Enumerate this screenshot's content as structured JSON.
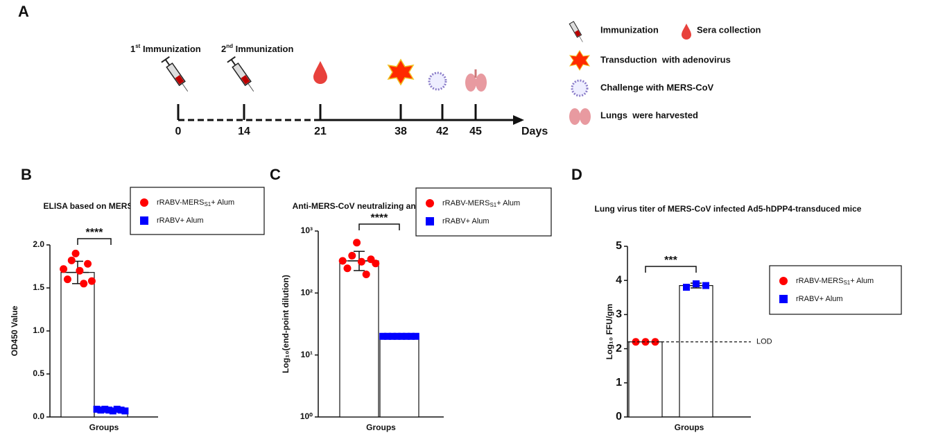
{
  "panel_labels": [
    "A",
    "B",
    "C",
    "D"
  ],
  "timeline": {
    "events": [
      {
        "ordinal": "1",
        "suffix": "st",
        "text": " Immunization"
      },
      {
        "ordinal": "2",
        "suffix": "nd",
        "text": " Immunization"
      }
    ],
    "days": [
      0,
      14,
      21,
      38,
      42,
      45
    ],
    "unit": "Days"
  },
  "legend": [
    "Immunization",
    "Sera collection",
    "Transduction  with adenovirus",
    "Challenge with MERS-CoV",
    "Lungs  were harvested"
  ],
  "chart_data": [
    {
      "type": "bar",
      "title": "ELISA based on MERS-S protein",
      "y_label": "OD450 Value",
      "x_label": "Groups",
      "ylim": [
        0,
        2
      ],
      "yticks": [
        {
          "value": 0,
          "label": "0.0"
        },
        0.5,
        {
          "value": 1,
          "label": "1.0"
        },
        1.5,
        {
          "value": 2,
          "label": "2.0"
        }
      ],
      "significance": "****",
      "series": [
        {
          "name": "rRABV-MERS",
          "name_sub": "S1",
          "name_after": "+ Alum",
          "color": "#ff0000",
          "marker": "circle",
          "value": 1.68,
          "error": [
            1.55,
            1.81
          ],
          "points": [
            1.72,
            1.6,
            1.82,
            1.9,
            1.7,
            1.55,
            1.78,
            1.58
          ]
        },
        {
          "name": "rRABV+ Alum",
          "color": "#0000ff",
          "marker": "square",
          "value": 0.08,
          "points": [
            0.09,
            0.08,
            0.09,
            0.08,
            0.07,
            0.09,
            0.08,
            0.07
          ]
        }
      ]
    },
    {
      "type": "bar",
      "title": "Anti-MERS-CoV neutralizing antibody titers",
      "y_label": "Log₁₀(end-point dilution)",
      "x_label": "Groups",
      "log_scale": true,
      "ylim": [
        1,
        1000
      ],
      "yticks": [
        {
          "value": 1,
          "label": "10⁰"
        },
        {
          "value": 10,
          "label": "10¹"
        },
        {
          "value": 100,
          "label": "10²"
        },
        {
          "value": 1000,
          "label": "10³"
        }
      ],
      "significance": "****",
      "series": [
        {
          "name": "rRABV-MERS",
          "name_sub": "S1",
          "name_after": "+ Alum",
          "color": "#ff0000",
          "marker": "circle",
          "value": 330,
          "error": [
            230,
            470
          ],
          "points": [
            330,
            250,
            400,
            650,
            320,
            200,
            350,
            300
          ]
        },
        {
          "name": "rRABV+ Alum",
          "color": "#0000ff",
          "marker": "square",
          "value": 20,
          "points": [
            20,
            20,
            20,
            20,
            20,
            20,
            20,
            20
          ]
        }
      ]
    },
    {
      "type": "bar",
      "title": "Lung virus titer of MERS-CoV infected Ad5-hDPP4-transduced mice",
      "y_label": "Log₁₀ FFU/gm",
      "x_label": "Groups",
      "ylim": [
        0,
        5
      ],
      "yticks": [
        0,
        1,
        2,
        3,
        4,
        5
      ],
      "significance": "***",
      "reference_line": {
        "value": 2.2,
        "label": "LOD"
      },
      "series": [
        {
          "name": "rRABV-MERS",
          "name_sub": "S1",
          "name_after": "+ Alum",
          "color": "#ff0000",
          "marker": "circle",
          "value": 2.2,
          "points": [
            2.2,
            2.2,
            2.2
          ]
        },
        {
          "name": "rRABV+ Alum",
          "color": "#0000ff",
          "marker": "square",
          "value": 3.85,
          "error": [
            3.78,
            3.92
          ],
          "points": [
            3.8,
            3.9,
            3.85
          ]
        }
      ]
    }
  ]
}
